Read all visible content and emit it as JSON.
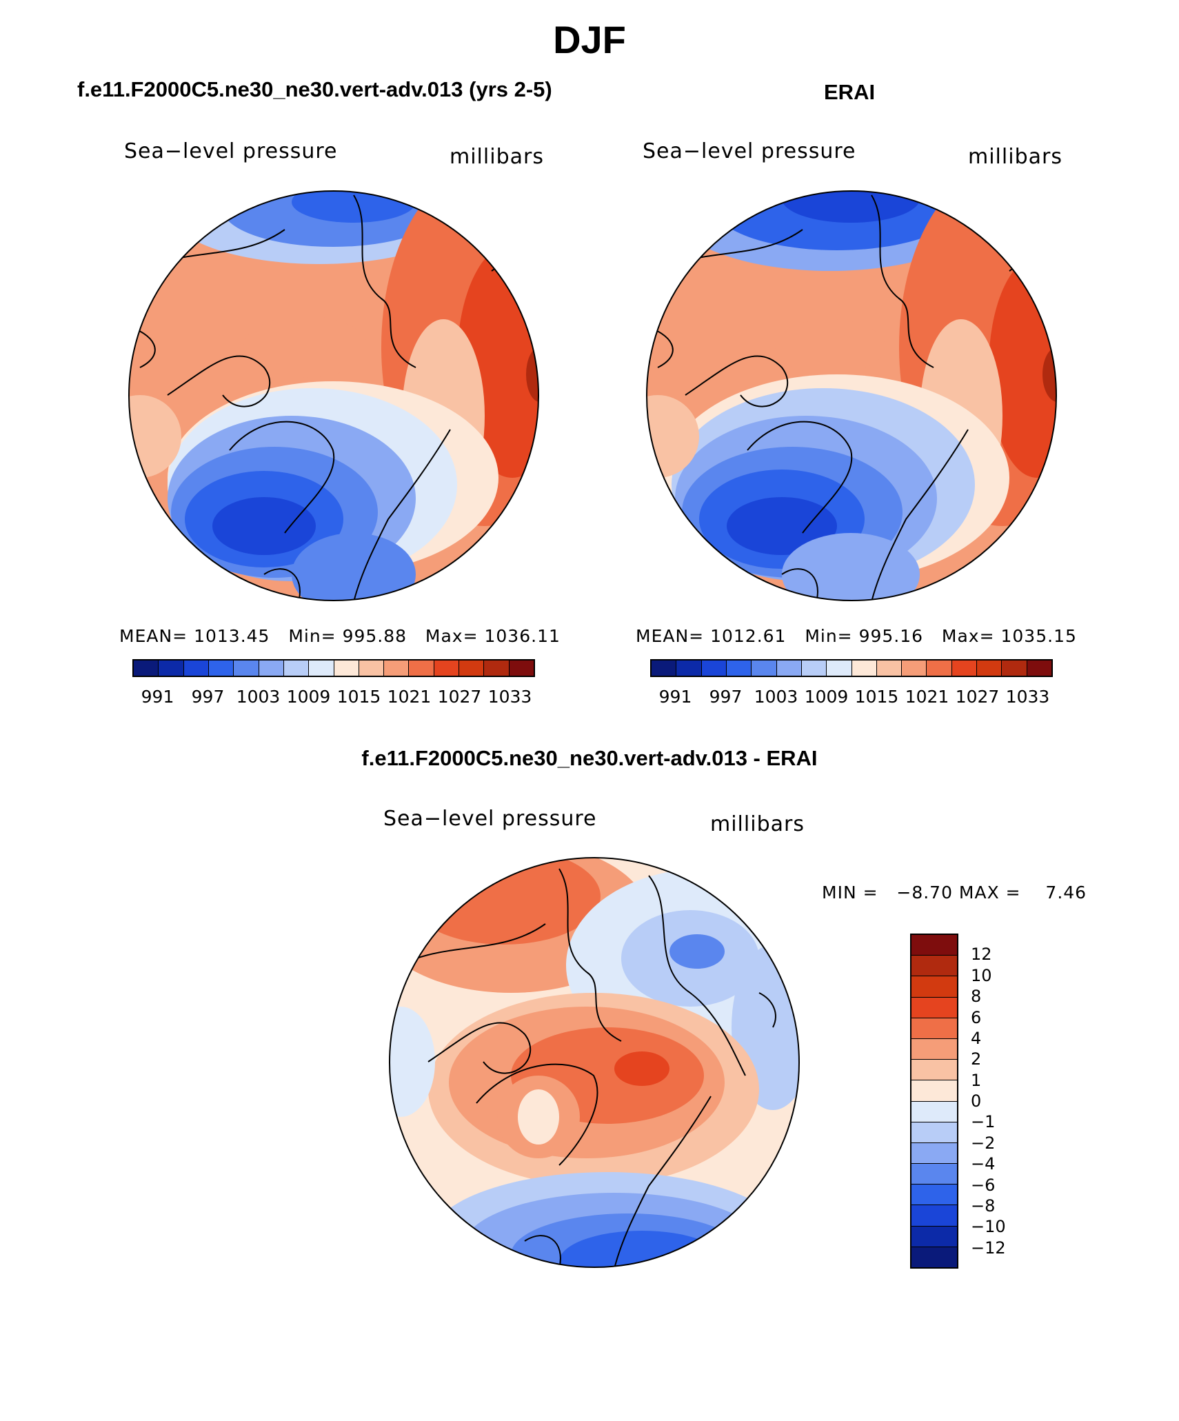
{
  "title": "DJF",
  "panels": [
    {
      "title": "f.e11.F2000C5.ne30_ne30.vert-adv.013 (yrs 2-5)",
      "left_label": "Sea−level pressure",
      "right_label": "millibars",
      "stats": {
        "mean_label": "MEAN=",
        "mean": "1013.45",
        "min_label": "Min=",
        "min": "995.88",
        "max_label": "Max=",
        "max": "1036.11"
      }
    },
    {
      "title": "ERAI",
      "left_label": "Sea−level pressure",
      "right_label": "millibars",
      "stats": {
        "mean_label": "MEAN=",
        "mean": "1012.61",
        "min_label": "Min=",
        "min": "995.16",
        "max_label": "Max=",
        "max": "1035.15"
      }
    },
    {
      "title": "f.e11.F2000C5.ne30_ne30.vert-adv.013 - ERAI",
      "left_label": "Sea−level pressure",
      "right_label": "millibars",
      "stats_line": "MIN =   −8.70 MAX =    7.46"
    }
  ],
  "abs_colorbar": {
    "colors": [
      "#0a1a7a",
      "#0c2aa8",
      "#1a45d8",
      "#2e63ea",
      "#5a86ee",
      "#8aa9f3",
      "#b8cdf7",
      "#deeafa",
      "#fde8d8",
      "#f9c2a4",
      "#f59d78",
      "#ef6f47",
      "#e5441f",
      "#d23a10",
      "#b02a0f",
      "#7e0d0d"
    ],
    "labels": [
      "991",
      "997",
      "1003",
      "1009",
      "1015",
      "1021",
      "1027",
      "1033"
    ]
  },
  "diff_colorbar": {
    "colors": [
      "#7e0d0d",
      "#b02a0f",
      "#d23a10",
      "#e5441f",
      "#ef6f47",
      "#f59d78",
      "#f9c2a4",
      "#fde8d8",
      "#deeafa",
      "#b8cdf7",
      "#8aa9f3",
      "#5a86ee",
      "#2e63ea",
      "#1a45d8",
      "#0c2aa8",
      "#0a1a7a"
    ],
    "labels": [
      "12",
      "10",
      "8",
      "6",
      "4",
      "2",
      "1",
      "0",
      "−1",
      "−2",
      "−4",
      "−6",
      "−8",
      "−10",
      "−12"
    ]
  }
}
